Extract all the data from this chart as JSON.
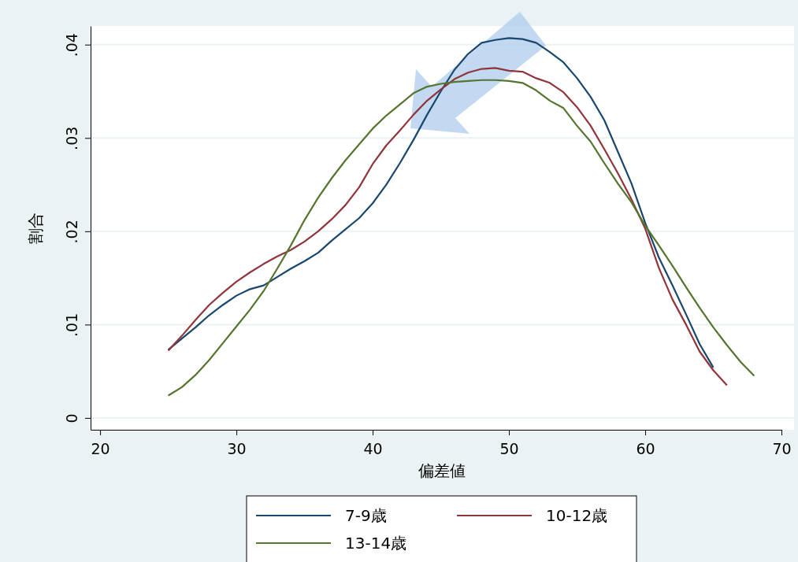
{
  "chart_data": {
    "type": "line",
    "xlabel": "偏差値",
    "ylabel": "割合",
    "xlim": [
      19.3,
      70
    ],
    "xticks": [
      20,
      30,
      40,
      50,
      60,
      70
    ],
    "ylim": [
      -0.00127,
      0.042
    ],
    "yticks": [
      0,
      {
        "value": 0.01,
        "label": ".01"
      },
      {
        "value": 0.02,
        "label": ".02"
      },
      {
        "value": 0.03,
        "label": ".03"
      },
      {
        "value": 0.04,
        "label": ".04"
      }
    ],
    "grid": "y",
    "legend": "bottom",
    "line_style": "solid",
    "marker": "none",
    "x": [
      25,
      26,
      27,
      28,
      29,
      30,
      31,
      32,
      33,
      34,
      35,
      36,
      37,
      38,
      39,
      40,
      41,
      42,
      43,
      44,
      45,
      46,
      47,
      48,
      49,
      50,
      51,
      52,
      53,
      54,
      55,
      56,
      57,
      58,
      59,
      60,
      61,
      62,
      63,
      64,
      65,
      66,
      67,
      68
    ],
    "series": [
      {
        "name": "7-9歳",
        "color": "#1a476f",
        "values": [
          0.0073,
          0.0085,
          0.0097,
          0.011,
          0.0121,
          0.0131,
          0.0138,
          0.0142,
          0.0151,
          0.016,
          0.0168,
          0.0177,
          0.019,
          0.0202,
          0.0214,
          0.023,
          0.025,
          0.0273,
          0.0298,
          0.0325,
          0.035,
          0.0373,
          0.039,
          0.0402,
          0.0405,
          0.0407,
          0.0406,
          0.0402,
          0.0392,
          0.0381,
          0.0364,
          0.0344,
          0.0319,
          0.0285,
          0.0251,
          0.0209,
          0.0172,
          0.0142,
          0.0111,
          0.0079,
          0.0054,
          null,
          null,
          null
        ]
      },
      {
        "name": "10-12歳",
        "color": "#90353b",
        "values": [
          0.0072,
          0.0088,
          0.0105,
          0.0121,
          0.0134,
          0.0146,
          0.0156,
          0.0165,
          0.0173,
          0.018,
          0.0189,
          0.02,
          0.0213,
          0.0228,
          0.0247,
          0.0272,
          0.0292,
          0.0308,
          0.0325,
          0.034,
          0.0352,
          0.0363,
          0.037,
          0.0374,
          0.0375,
          0.0372,
          0.0371,
          0.0364,
          0.0359,
          0.0349,
          0.0333,
          0.0313,
          0.0288,
          0.0262,
          0.0234,
          0.0203,
          0.0161,
          0.0127,
          0.01,
          0.0071,
          0.0051,
          0.0035,
          null,
          null
        ]
      },
      {
        "name": "13-14歳",
        "color": "#55752f",
        "values": [
          0.0024,
          0.0033,
          0.0046,
          0.0062,
          0.008,
          0.0098,
          0.0116,
          0.0136,
          0.016,
          0.0185,
          0.0212,
          0.0236,
          0.0257,
          0.0276,
          0.0293,
          0.031,
          0.0324,
          0.0336,
          0.0348,
          0.0355,
          0.0358,
          0.036,
          0.0361,
          0.0362,
          0.0362,
          0.0361,
          0.0359,
          0.0351,
          0.034,
          0.0332,
          0.0313,
          0.0296,
          0.0273,
          0.0251,
          0.0231,
          0.0206,
          0.0185,
          0.0163,
          0.014,
          0.0118,
          0.0097,
          0.0078,
          0.006,
          0.0045
        ]
      }
    ]
  }
}
